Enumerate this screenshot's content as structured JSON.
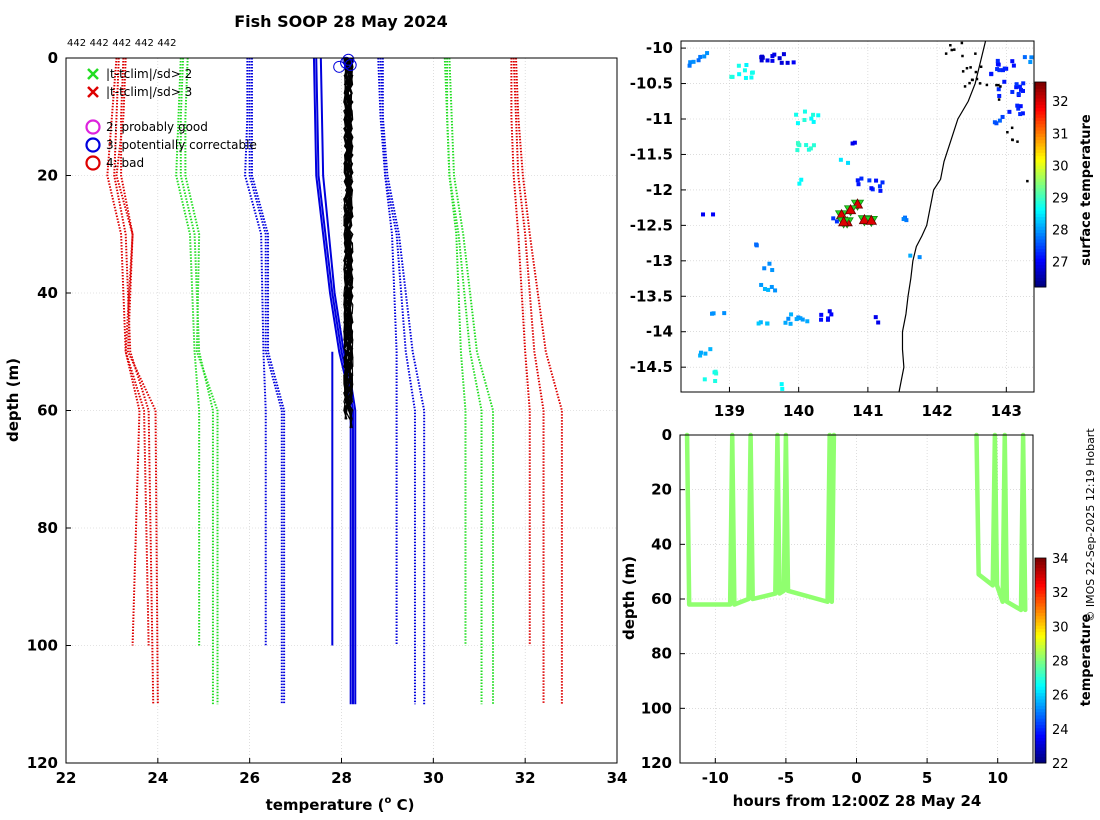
{
  "title": "Fish SOOP 28 May 2024",
  "credit": "© IMOS 22-Sep-2025 12:19 Hobart",
  "colors": {
    "red": "#dd0000",
    "green": "#22dd22",
    "blue": "#0000dd",
    "black": "#000000",
    "grid": "#c8c8c8"
  },
  "chart_data": [
    {
      "id": "profile",
      "type": "line",
      "title": "Fish SOOP 28 May 2024",
      "xlabel": "temperature (",
      "xlabel_sup": "o",
      "xlabel_tail": " C)",
      "ylabel": "depth (m)",
      "xlim": [
        22,
        34
      ],
      "ylim": [
        0,
        120
      ],
      "xticks": [
        22,
        24,
        26,
        28,
        30,
        32,
        34
      ],
      "yticks": [
        0,
        20,
        40,
        60,
        80,
        100,
        120
      ],
      "top_counts": [
        "442",
        "442",
        "442",
        "442",
        "442"
      ],
      "legend": [
        {
          "symbol": "x",
          "color": "#22dd22",
          "label": "|t-tclim|/sd> 2"
        },
        {
          "symbol": "x",
          "color": "#dd0000",
          "label": "|t-tclim|/sd> 3"
        },
        {
          "symbol": "o",
          "color": "#dd22dd",
          "label": "2: probably good"
        },
        {
          "symbol": "o",
          "color": "#0000dd",
          "label": "3: potentially correctable"
        },
        {
          "symbol": "o",
          "color": "#dd0000",
          "label": "4: bad"
        }
      ],
      "climatology": [
        {
          "name": "clim +/-3sd low",
          "color": "#dd0000",
          "lines": [
            {
              "depth": [
                0,
                10,
                20,
                30,
                50,
                60,
                100
              ],
              "temp": [
                23.1,
                23.0,
                22.9,
                23.2,
                23.3,
                23.7,
                23.8
              ]
            },
            {
              "depth": [
                0,
                10,
                20,
                30,
                50,
                60,
                110
              ],
              "temp": [
                23.15,
                23.1,
                23.05,
                23.3,
                23.4,
                23.8,
                23.9
              ]
            },
            {
              "depth": [
                0,
                10,
                20,
                30,
                50,
                60,
                110
              ],
              "temp": [
                23.25,
                23.2,
                23.2,
                23.45,
                23.35,
                23.95,
                24.0
              ]
            },
            {
              "depth": [
                0,
                10,
                20,
                30,
                50,
                60,
                100
              ],
              "temp": [
                23.3,
                23.25,
                23.1,
                23.45,
                23.3,
                23.6,
                23.45
              ]
            }
          ]
        },
        {
          "name": "clim +/-2sd low",
          "color": "#22dd22",
          "lines": [
            {
              "depth": [
                0,
                10,
                20,
                30,
                50,
                60,
                100
              ],
              "temp": [
                24.5,
                24.45,
                24.4,
                24.7,
                24.8,
                24.9,
                24.9
              ]
            },
            {
              "depth": [
                0,
                10,
                20,
                30,
                50,
                60,
                110
              ],
              "temp": [
                24.55,
                24.5,
                24.5,
                24.8,
                24.9,
                25.2,
                25.2
              ]
            },
            {
              "depth": [
                0,
                10,
                20,
                30,
                50,
                60,
                110
              ],
              "temp": [
                24.65,
                24.6,
                24.6,
                24.9,
                24.85,
                25.3,
                25.3
              ]
            }
          ]
        },
        {
          "name": "clim +/-1sd low",
          "color": "#0000dd",
          "lines": [
            {
              "depth": [
                0,
                10,
                20,
                30,
                50,
                60,
                100
              ],
              "temp": [
                25.95,
                25.95,
                25.9,
                26.25,
                26.3,
                26.35,
                26.35
              ]
            },
            {
              "depth": [
                0,
                10,
                20,
                30,
                50,
                60,
                110
              ],
              "temp": [
                26.0,
                26.0,
                26.0,
                26.35,
                26.35,
                26.7,
                26.7
              ]
            },
            {
              "depth": [
                0,
                10,
                20,
                30,
                50,
                60,
                110
              ],
              "temp": [
                26.05,
                26.05,
                26.05,
                26.4,
                26.4,
                26.75,
                26.75
              ]
            }
          ]
        },
        {
          "name": "clim +/-1sd high",
          "color": "#0000dd",
          "lines": [
            {
              "depth": [
                0,
                10,
                20,
                30,
                50,
                60,
                100
              ],
              "temp": [
                28.9,
                28.9,
                28.95,
                29.1,
                29.2,
                29.2,
                29.2
              ]
            },
            {
              "depth": [
                0,
                10,
                20,
                30,
                50,
                60,
                110
              ],
              "temp": [
                28.8,
                28.85,
                28.95,
                29.2,
                29.4,
                29.6,
                29.6
              ]
            },
            {
              "depth": [
                0,
                10,
                20,
                30,
                50,
                60,
                110
              ],
              "temp": [
                28.85,
                28.9,
                29.0,
                29.25,
                29.55,
                29.8,
                29.8
              ]
            }
          ]
        },
        {
          "name": "clim +/-2sd high",
          "color": "#22dd22",
          "lines": [
            {
              "depth": [
                0,
                10,
                20,
                30,
                50,
                60,
                100
              ],
              "temp": [
                30.3,
                30.3,
                30.35,
                30.5,
                30.6,
                30.7,
                30.7
              ]
            },
            {
              "depth": [
                0,
                10,
                20,
                30,
                50,
                60,
                110
              ],
              "temp": [
                30.25,
                30.3,
                30.35,
                30.55,
                30.8,
                31.05,
                31.05
              ]
            },
            {
              "depth": [
                0,
                10,
                20,
                30,
                50,
                60,
                110
              ],
              "temp": [
                30.35,
                30.4,
                30.45,
                30.65,
                30.95,
                31.3,
                31.3
              ]
            }
          ]
        },
        {
          "name": "clim +/-3sd high",
          "color": "#dd0000",
          "lines": [
            {
              "depth": [
                0,
                10,
                20,
                30,
                50,
                60,
                100
              ],
              "temp": [
                31.7,
                31.7,
                31.75,
                31.85,
                32.0,
                32.1,
                32.1
              ]
            },
            {
              "depth": [
                0,
                10,
                20,
                30,
                50,
                60,
                110
              ],
              "temp": [
                31.75,
                31.8,
                31.85,
                32.0,
                32.2,
                32.4,
                32.4
              ]
            },
            {
              "depth": [
                0,
                10,
                20,
                30,
                50,
                60,
                110
              ],
              "temp": [
                31.8,
                31.85,
                31.95,
                32.1,
                32.45,
                32.8,
                32.8
              ]
            }
          ]
        }
      ],
      "reference_lines": [
        {
          "name": "reference low",
          "color": "#0000dd",
          "depth": [
            0,
            20,
            40,
            50,
            55,
            60,
            110
          ],
          "temp": [
            27.4,
            27.45,
            27.75,
            27.95,
            28.1,
            28.2,
            28.2
          ]
        },
        {
          "name": "reference low 2",
          "color": "#0000dd",
          "depth": [
            0,
            20,
            40,
            50,
            55,
            60,
            110
          ],
          "temp": [
            27.45,
            27.5,
            27.8,
            28.0,
            28.15,
            28.25,
            28.25
          ]
        },
        {
          "name": "reference low 3",
          "color": "#0000dd",
          "depth": [
            0,
            20,
            40,
            50,
            55,
            60,
            110
          ],
          "temp": [
            27.55,
            27.6,
            27.85,
            28.05,
            28.2,
            28.3,
            28.3
          ]
        },
        {
          "name": "reference vertical",
          "color": "#0000dd",
          "depth": [
            50,
            100
          ],
          "temp": [
            27.8,
            27.8
          ]
        }
      ],
      "observed": {
        "color": "#000000",
        "n_profiles": 24,
        "temp_range": [
          28.05,
          28.25
        ],
        "max_depth": [
          59,
          64
        ]
      },
      "flag_circles": [
        {
          "temp": 27.95,
          "depth": 1.5,
          "color": "#0000dd"
        },
        {
          "temp": 28.1,
          "depth": 0.8,
          "color": "#0000dd"
        },
        {
          "temp": 28.15,
          "depth": 0.3,
          "color": "#0000dd"
        },
        {
          "temp": 28.2,
          "depth": 1.2,
          "color": "#0000dd"
        }
      ]
    },
    {
      "id": "map",
      "type": "heatmap",
      "colorbar_label": "surface temperature",
      "xlim": [
        138.3,
        143.4
      ],
      "ylim": [
        -14.85,
        -9.9
      ],
      "xticks": [
        139,
        140,
        141,
        142,
        143
      ],
      "yticks": [
        -10,
        -10.5,
        -11,
        -11.5,
        -12,
        -12.5,
        -13,
        -13.5,
        -14,
        -14.5
      ],
      "clim": [
        26.2,
        32.6
      ],
      "cticks": [
        27,
        28,
        29,
        30,
        31,
        32
      ],
      "patches": [
        {
          "lon": 138.6,
          "lat": -10.05,
          "t": 27.8,
          "n": 3
        },
        {
          "lon": 138.5,
          "lat": -10.2,
          "t": 27.8,
          "n": 4
        },
        {
          "lon": 139.15,
          "lat": -10.3,
          "t": 28.7,
          "n": 10
        },
        {
          "lon": 139.6,
          "lat": -10.15,
          "t": 26.8,
          "n": 12
        },
        {
          "lon": 139.85,
          "lat": -10.2,
          "t": 26.9,
          "n": 2
        },
        {
          "lon": 140.1,
          "lat": -10.95,
          "t": 28.7,
          "n": 8
        },
        {
          "lon": 140.1,
          "lat": -11.35,
          "t": 28.9,
          "n": 8
        },
        {
          "lon": 140.8,
          "lat": -11.3,
          "t": 27.0,
          "n": 2
        },
        {
          "lon": 140.65,
          "lat": -11.55,
          "t": 28.5,
          "n": 2
        },
        {
          "lon": 140.5,
          "lat": -12.4,
          "t": 27.2,
          "n": 2
        },
        {
          "lon": 141.0,
          "lat": -11.9,
          "t": 27.2,
          "n": 10
        },
        {
          "lon": 140.0,
          "lat": -11.85,
          "t": 28.7,
          "n": 2
        },
        {
          "lon": 141.45,
          "lat": -12.35,
          "t": 27.7,
          "n": 3
        },
        {
          "lon": 138.65,
          "lat": -12.35,
          "t": 27.0,
          "n": 2
        },
        {
          "lon": 139.35,
          "lat": -12.75,
          "t": 27.8,
          "n": 2
        },
        {
          "lon": 139.5,
          "lat": -13.05,
          "t": 27.8,
          "n": 3
        },
        {
          "lon": 139.5,
          "lat": -13.35,
          "t": 28.0,
          "n": 5
        },
        {
          "lon": 139.45,
          "lat": -13.8,
          "t": 28.2,
          "n": 4
        },
        {
          "lon": 139.85,
          "lat": -13.8,
          "t": 28.0,
          "n": 6
        },
        {
          "lon": 138.8,
          "lat": -13.75,
          "t": 28.0,
          "n": 3
        },
        {
          "lon": 140.35,
          "lat": -13.75,
          "t": 27.0,
          "n": 6
        },
        {
          "lon": 140.0,
          "lat": -13.8,
          "t": 28.0,
          "n": 3
        },
        {
          "lon": 138.6,
          "lat": -14.25,
          "t": 28.0,
          "n": 4
        },
        {
          "lon": 138.7,
          "lat": -14.6,
          "t": 28.7,
          "n": 5
        },
        {
          "lon": 139.8,
          "lat": -14.75,
          "t": 28.6,
          "n": 2
        },
        {
          "lon": 141.15,
          "lat": -13.8,
          "t": 26.9,
          "n": 2
        },
        {
          "lon": 141.65,
          "lat": -12.9,
          "t": 28.0,
          "n": 2
        },
        {
          "lon": 142.9,
          "lat": -10.25,
          "t": 27.2,
          "n": 12
        },
        {
          "lon": 143.05,
          "lat": -10.55,
          "t": 27.2,
          "n": 12
        },
        {
          "lon": 143.1,
          "lat": -10.85,
          "t": 27.2,
          "n": 6
        },
        {
          "lon": 142.85,
          "lat": -11.0,
          "t": 27.5,
          "n": 4
        },
        {
          "lon": 143.25,
          "lat": -10.15,
          "t": 27.8,
          "n": 3
        }
      ],
      "coastline": {
        "lon": [
          142.7,
          142.55,
          142.45,
          142.3,
          142.2,
          142.1,
          142.05,
          141.95,
          141.9,
          141.85,
          141.78,
          141.7,
          141.65,
          141.62,
          141.58,
          141.55,
          141.5,
          141.5,
          141.52,
          141.48,
          141.45
        ],
        "lat": [
          -9.9,
          -10.5,
          -10.75,
          -11.0,
          -11.3,
          -11.6,
          -11.85,
          -12.0,
          -12.25,
          -12.5,
          -12.65,
          -12.8,
          -13.0,
          -13.25,
          -13.5,
          -13.75,
          -14.0,
          -14.25,
          -14.5,
          -14.7,
          -14.85
        ]
      },
      "islands": [
        {
          "lon": 142.2,
          "lat": -10.05,
          "n": 6
        },
        {
          "lon": 142.5,
          "lat": -10.4,
          "n": 8
        },
        {
          "lon": 142.75,
          "lat": -10.6,
          "n": 6
        },
        {
          "lon": 143.0,
          "lat": -11.2,
          "n": 5
        },
        {
          "lon": 142.6,
          "lat": -10.15,
          "n": 3
        },
        {
          "lon": 143.35,
          "lat": -11.8,
          "n": 3
        }
      ],
      "stations": [
        {
          "lon": 140.62,
          "lat": -12.35,
          "t": 30.0
        },
        {
          "lon": 140.85,
          "lat": -12.2,
          "t": 29.0
        },
        {
          "lon": 140.75,
          "lat": -12.28,
          "t": 29.0
        },
        {
          "lon": 140.95,
          "lat": -12.42,
          "t": 29.0
        },
        {
          "lon": 140.7,
          "lat": -12.45,
          "t": 29.0
        },
        {
          "lon": 141.05,
          "lat": -12.43,
          "t": 29.0
        },
        {
          "lon": 140.65,
          "lat": -12.45,
          "t": 29.0
        }
      ]
    },
    {
      "id": "timeseries",
      "type": "scatter",
      "xlabel": "hours from 12:00Z 28 May 24",
      "ylabel": "depth (m)",
      "colorbar_label": "temperature",
      "xlim": [
        -12.5,
        12.5
      ],
      "ylim": [
        0,
        120
      ],
      "xticks": [
        -10,
        -5,
        0,
        5,
        10
      ],
      "yticks": [
        0,
        20,
        40,
        60,
        80,
        100,
        120
      ],
      "clim": [
        22,
        34
      ],
      "cticks": [
        22,
        24,
        26,
        28,
        30,
        32,
        34
      ],
      "trace_temp": 28.2,
      "profiles": [
        {
          "t": -12.0,
          "bottom": 62
        },
        {
          "t": -8.8,
          "bottom": 62
        },
        {
          "t": -7.5,
          "bottom": 60
        },
        {
          "t": -5.6,
          "bottom": 58
        },
        {
          "t": -5.0,
          "bottom": 57
        },
        {
          "t": -1.9,
          "bottom": 61
        },
        {
          "t": 8.5,
          "bottom": 51
        },
        {
          "t": 9.8,
          "bottom": 55
        },
        {
          "t": 10.5,
          "bottom": 61
        },
        {
          "t": 11.8,
          "bottom": 64
        }
      ]
    }
  ]
}
